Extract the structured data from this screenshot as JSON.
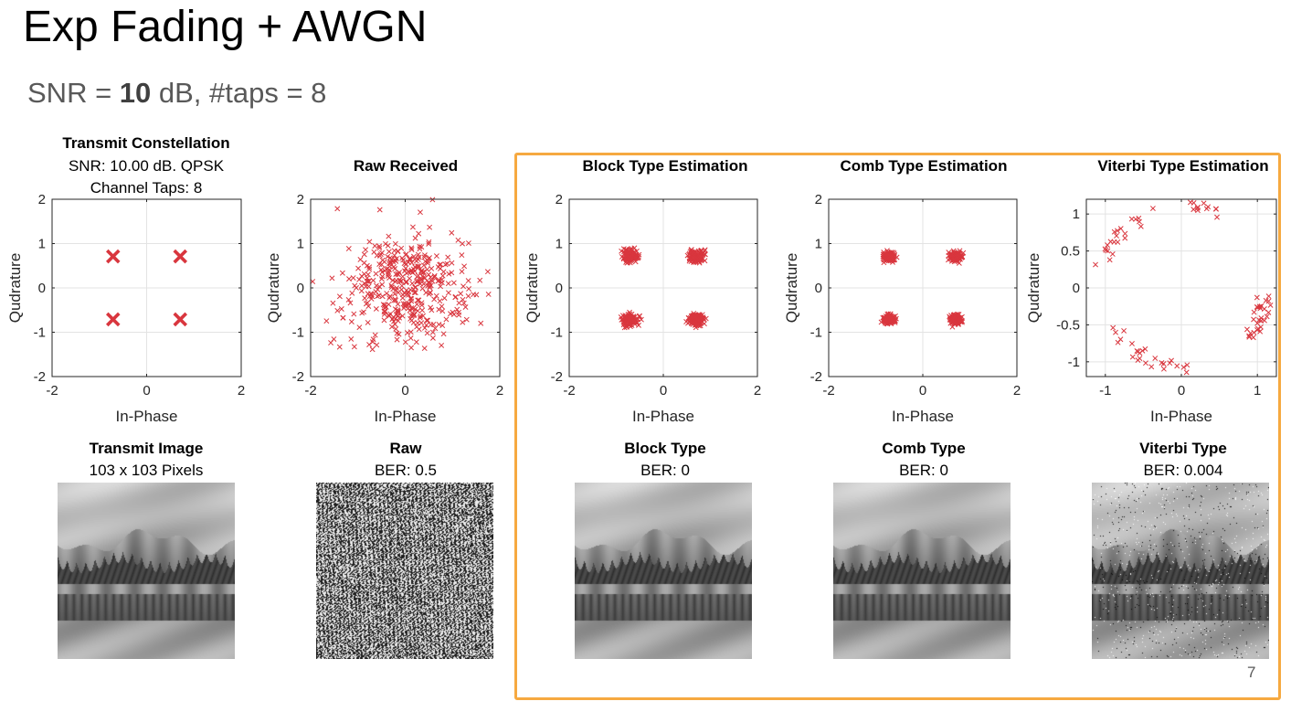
{
  "slide": {
    "title": "Exp Fading + AWGN",
    "snr_prefix": "SNR = ",
    "snr_value": "10",
    "snr_suffix": " dB, #taps = 8",
    "page_number": "7"
  },
  "chart_data": [
    {
      "type": "scatter",
      "title": "Transmit Constellation",
      "subtitle": [
        "SNR: 10.00 dB. QPSK",
        "Channel Taps: 8"
      ],
      "xlabel": "In-Phase",
      "ylabel": "Qudrature",
      "xlim": [
        -2,
        2
      ],
      "ylim": [
        -2,
        2
      ],
      "xticks": [
        -2,
        0,
        2
      ],
      "yticks": [
        -2,
        -1,
        0,
        1,
        2
      ],
      "grid": true,
      "marker": "x",
      "color": "#d9363e",
      "points": [
        [
          -0.71,
          0.71
        ],
        [
          0.71,
          0.71
        ],
        [
          -0.71,
          -0.71
        ],
        [
          0.71,
          -0.71
        ]
      ],
      "marker_size": "large"
    },
    {
      "type": "scatter",
      "title": "Raw Received",
      "xlabel": "In-Phase",
      "ylabel": "Qudrature",
      "xlim": [
        -2,
        2
      ],
      "ylim": [
        -2,
        2
      ],
      "xticks": [
        -2,
        0,
        2
      ],
      "yticks": [
        -2,
        -1,
        0,
        1,
        2
      ],
      "grid": true,
      "marker": "x",
      "color": "#d9363e",
      "cloud": {
        "center": [
          0,
          0
        ],
        "spread": [
          0.62,
          0.62
        ],
        "count": 420
      }
    },
    {
      "type": "scatter",
      "title": "Block Type Estimation",
      "xlabel": "In-Phase",
      "ylabel": "Qudrature",
      "xlim": [
        -2,
        2
      ],
      "ylim": [
        -2,
        2
      ],
      "xticks": [
        -2,
        0,
        2
      ],
      "yticks": [
        -2,
        -1,
        0,
        1,
        2
      ],
      "grid": true,
      "marker": "x",
      "color": "#d9363e",
      "clusters": {
        "centers": [
          [
            -0.71,
            0.71
          ],
          [
            0.71,
            0.71
          ],
          [
            -0.71,
            -0.71
          ],
          [
            0.71,
            -0.71
          ]
        ],
        "spread": 0.08,
        "count_per_cluster": 110
      }
    },
    {
      "type": "scatter",
      "title": "Comb Type Estimation",
      "xlabel": "In-Phase",
      "ylabel": "Qudrature",
      "xlim": [
        -2,
        2
      ],
      "ylim": [
        -2,
        2
      ],
      "xticks": [
        -2,
        0,
        2
      ],
      "yticks": [
        -2,
        -1,
        0,
        1,
        2
      ],
      "grid": true,
      "marker": "x",
      "color": "#d9363e",
      "clusters": {
        "centers": [
          [
            -0.71,
            0.71
          ],
          [
            0.71,
            0.71
          ],
          [
            -0.71,
            -0.71
          ],
          [
            0.71,
            -0.71
          ]
        ],
        "spread": 0.065,
        "count_per_cluster": 110
      }
    },
    {
      "type": "scatter",
      "title": "Viterbi Type Estimation",
      "xlabel": "In-Phase",
      "ylabel": "Qudrature",
      "xlim": [
        -1.25,
        1.25
      ],
      "ylim": [
        -1.2,
        1.2
      ],
      "xticks": [
        -1,
        0,
        1
      ],
      "xticklabels": [
        "-1",
        "0",
        "1"
      ],
      "yticks": [
        -1,
        -0.5,
        0,
        0.5,
        1
      ],
      "yticklabels": [
        "-1",
        "-0.5",
        "0",
        "0.5",
        "1"
      ],
      "grid": true,
      "marker": "x",
      "color": "#d9363e",
      "arcs": [
        {
          "angle_deg": [
            108,
            165
          ],
          "radius": [
            0.98,
            1.18
          ],
          "count": 22
        },
        {
          "angle_deg": [
            55,
            85
          ],
          "radius": [
            1.05,
            1.2
          ],
          "count": 12
        },
        {
          "angle_deg": [
            -40,
            -5
          ],
          "radius": [
            1.0,
            1.2
          ],
          "count": 30
        },
        {
          "angle_deg": [
            -150,
            -85
          ],
          "radius": [
            0.95,
            1.15
          ],
          "count": 26
        }
      ]
    }
  ],
  "images": [
    {
      "title": "Transmit Image",
      "subtitle": "103 x 103 Pixels",
      "kind": "clean"
    },
    {
      "title": "Raw",
      "subtitle": "BER: 0.5",
      "kind": "noise"
    },
    {
      "title": "Block Type",
      "subtitle": "BER: 0",
      "kind": "clean"
    },
    {
      "title": "Comb Type",
      "subtitle": "BER: 0",
      "kind": "clean"
    },
    {
      "title": "Viterbi Type",
      "subtitle": "BER: 0.004",
      "kind": "speckled",
      "ber": 0.004
    }
  ]
}
